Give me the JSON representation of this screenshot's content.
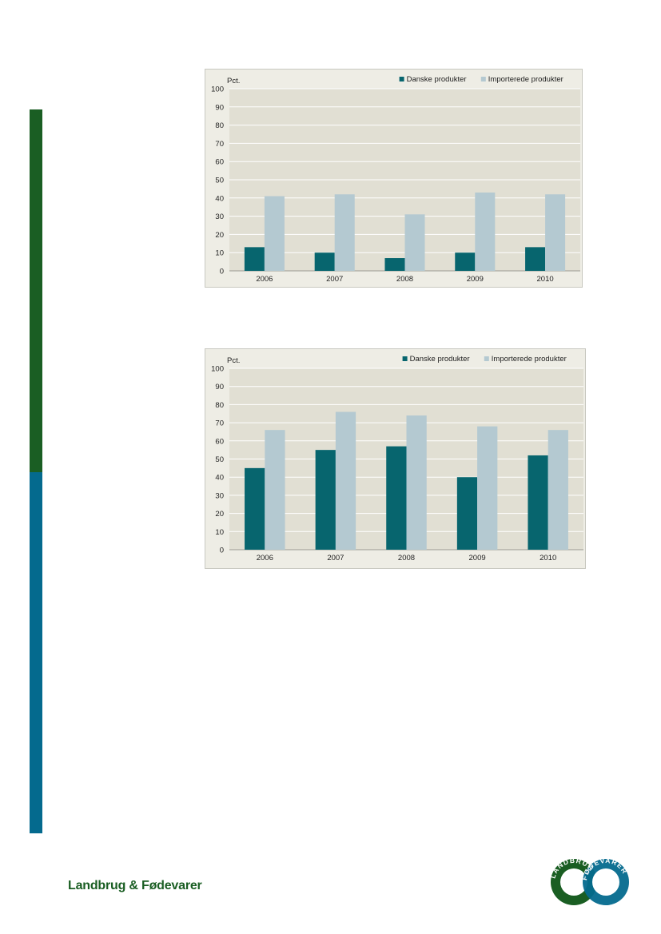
{
  "chart_data": [
    {
      "type": "bar",
      "ylabel": "Pct.",
      "ylim": [
        0,
        100
      ],
      "yticks": [
        0,
        10,
        20,
        30,
        40,
        50,
        60,
        70,
        80,
        90,
        100
      ],
      "categories": [
        "2006",
        "2007",
        "2008",
        "2009",
        "2010"
      ],
      "series": [
        {
          "name": "Danske produkter",
          "color": "#07656e",
          "values": [
            13,
            10,
            7,
            10,
            13
          ]
        },
        {
          "name": "Importerede produkter",
          "color": "#b4c9d1",
          "values": [
            41,
            42,
            31,
            43,
            42
          ]
        }
      ],
      "grid": true,
      "legend": "top-right"
    },
    {
      "type": "bar",
      "ylabel": "Pct.",
      "ylim": [
        0,
        100
      ],
      "yticks": [
        0,
        10,
        20,
        30,
        40,
        50,
        60,
        70,
        80,
        90,
        100
      ],
      "categories": [
        "2006",
        "2007",
        "2008",
        "2009",
        "2010"
      ],
      "series": [
        {
          "name": "Danske produkter",
          "color": "#07656e",
          "values": [
            45,
            55,
            57,
            40,
            52
          ]
        },
        {
          "name": "Importerede produkter",
          "color": "#b4c9d1",
          "values": [
            66,
            76,
            74,
            68,
            66
          ]
        }
      ],
      "grid": true,
      "legend": "top-right"
    }
  ],
  "footer": {
    "brand": "Landbrug & Fødevarer"
  },
  "logo": {
    "left_text": "LANDBRUG",
    "right_text": "FØDEVARER",
    "left_color": "#1a5e23",
    "right_color": "#046a8e"
  }
}
